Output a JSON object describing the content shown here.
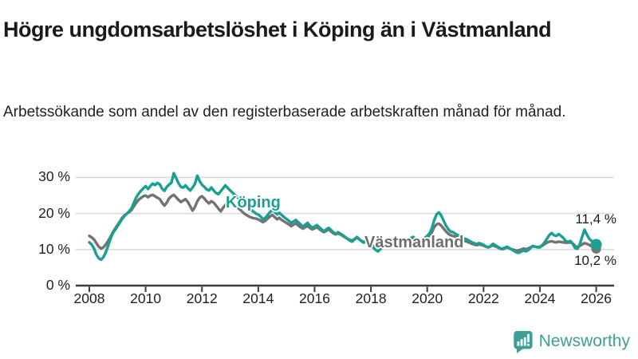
{
  "header": {
    "title": "Högre ungdomsarbetslöshet i Köping än i Västmanland",
    "subtitle": "Arbetssökande som andel av den registerbaserade arbetskraften månad för månad."
  },
  "footer": {
    "brand": "Newsworthy"
  },
  "colors": {
    "accent_teal": "#1aa091",
    "series_gray": "#737373",
    "brand_teal": "#3f9e96",
    "gridline": "#d9d9d9",
    "axis": "#3a3a3a"
  },
  "chart_data": {
    "type": "line",
    "unit": "%",
    "frequency": "monthly",
    "x_start": "2008-01",
    "x_end": "2026-01",
    "ylim": [
      0,
      33
    ],
    "grid": "horizontal",
    "legend_position": "inline-labels",
    "y_ticks": [
      {
        "value": 0,
        "label": "0 %"
      },
      {
        "value": 10,
        "label": "10 %"
      },
      {
        "value": 20,
        "label": "20 %"
      },
      {
        "value": 30,
        "label": "30 %"
      }
    ],
    "x_ticks": [
      {
        "value": 2008,
        "label": "2008"
      },
      {
        "value": 2010,
        "label": "2010"
      },
      {
        "value": 2012,
        "label": "2012"
      },
      {
        "value": 2014,
        "label": "2014"
      },
      {
        "value": 2016,
        "label": "2016"
      },
      {
        "value": 2018,
        "label": "2018"
      },
      {
        "value": 2020,
        "label": "2020"
      },
      {
        "value": 2022,
        "label": "2022"
      },
      {
        "value": 2024,
        "label": "2024"
      },
      {
        "value": 2026,
        "label": "2026"
      }
    ],
    "series": [
      {
        "name": "Köping",
        "slug": "koping",
        "color": "#1aa091",
        "end_label": "11,4 %",
        "end_value": 11.4,
        "values": [
          12.0,
          11.4,
          10.3,
          8.6,
          7.6,
          7.2,
          7.9,
          9.2,
          11.0,
          13.0,
          14.5,
          15.5,
          16.5,
          17.5,
          18.5,
          19.3,
          20.0,
          20.6,
          21.5,
          23.0,
          24.5,
          25.5,
          26.3,
          27.0,
          27.6,
          26.8,
          27.6,
          28.3,
          27.9,
          28.5,
          28.1,
          26.9,
          26.3,
          27.4,
          28.0,
          28.6,
          31.2,
          29.8,
          28.4,
          27.4,
          27.2,
          27.8,
          27.0,
          26.4,
          27.2,
          28.2,
          30.5,
          29.0,
          28.0,
          27.4,
          26.7,
          26.4,
          27.2,
          26.4,
          25.7,
          25.4,
          26.2,
          27.0,
          27.8,
          27.1,
          26.4,
          25.8,
          25.2,
          24.6,
          24.0,
          23.4,
          22.8,
          22.2,
          21.6,
          21.0,
          20.5,
          20.0,
          19.7,
          19.2,
          18.4,
          18.8,
          19.6,
          20.4,
          21.0,
          20.4,
          19.8,
          20.2,
          19.6,
          19.0,
          18.5,
          18.0,
          17.4,
          17.8,
          18.2,
          17.6,
          17.0,
          16.4,
          16.9,
          17.4,
          16.6,
          16.1,
          16.4,
          16.8,
          16.2,
          15.6,
          15.1,
          15.6,
          16.0,
          15.4,
          14.8,
          14.4,
          14.8,
          14.4,
          14.0,
          13.5,
          13.0,
          12.5,
          12.2,
          12.8,
          13.5,
          12.9,
          12.3,
          11.9,
          12.4,
          12.0,
          11.4,
          10.6,
          9.9,
          9.5,
          10.1,
          10.8,
          11.3,
          11.7,
          11.3,
          11.8,
          12.2,
          12.0,
          12.2,
          12.5,
          12.1,
          12.4,
          12.8,
          13.2,
          13.5,
          13.0,
          12.6,
          12.4,
          12.8,
          13.2,
          13.8,
          14.5,
          16.0,
          18.2,
          19.8,
          20.3,
          19.4,
          18.0,
          16.6,
          15.6,
          15.0,
          14.8,
          14.4,
          14.0,
          13.6,
          13.3,
          13.0,
          12.8,
          12.4,
          12.0,
          11.8,
          11.5,
          11.8,
          11.6,
          11.3,
          10.9,
          10.6,
          11.0,
          11.6,
          11.2,
          10.8,
          10.4,
          10.2,
          10.5,
          10.8,
          10.4,
          10.0,
          9.6,
          9.2,
          9.1,
          9.4,
          9.8,
          9.5,
          9.8,
          10.4,
          11.0,
          10.8,
          10.6,
          10.6,
          11.2,
          12.0,
          13.0,
          14.0,
          14.6,
          14.0,
          13.8,
          14.3,
          13.8,
          13.2,
          12.4,
          12.1,
          12.4,
          11.6,
          10.4,
          10.2,
          11.5,
          13.5,
          15.5,
          14.2,
          13.0,
          12.4,
          11.8,
          11.4
        ]
      },
      {
        "name": "Västmanland",
        "slug": "vastmanland",
        "color": "#737373",
        "end_label": "10,2 %",
        "end_value": 10.2,
        "values": [
          13.8,
          13.4,
          12.8,
          11.8,
          10.8,
          10.3,
          10.6,
          11.4,
          12.4,
          13.5,
          14.8,
          15.8,
          16.8,
          17.8,
          18.8,
          19.5,
          20.0,
          20.4,
          21.0,
          22.0,
          23.0,
          23.8,
          24.3,
          24.8,
          25.0,
          24.5,
          25.0,
          25.2,
          24.8,
          24.4,
          24.0,
          23.0,
          22.2,
          23.0,
          24.2,
          24.8,
          25.2,
          24.5,
          23.8,
          23.2,
          23.6,
          24.0,
          23.2,
          22.0,
          20.8,
          21.8,
          23.4,
          24.4,
          24.8,
          24.2,
          23.4,
          22.8,
          23.4,
          23.0,
          22.2,
          21.4,
          20.6,
          21.6,
          22.4,
          23.0,
          23.4,
          23.0,
          22.4,
          21.8,
          21.2,
          20.6,
          20.0,
          19.6,
          19.2,
          18.9,
          18.7,
          18.6,
          18.4,
          18.0,
          17.6,
          18.0,
          18.6,
          19.2,
          19.6,
          19.0,
          18.4,
          18.8,
          18.2,
          17.8,
          17.4,
          17.0,
          16.5,
          16.9,
          17.3,
          16.7,
          16.2,
          15.8,
          16.2,
          16.6,
          16.0,
          15.6,
          15.9,
          16.2,
          15.7,
          15.2,
          14.8,
          15.2,
          15.6,
          15.0,
          14.5,
          14.2,
          14.5,
          14.2,
          13.8,
          13.4,
          13.0,
          12.7,
          12.5,
          12.9,
          13.3,
          12.8,
          12.4,
          12.1,
          12.5,
          12.2,
          11.8,
          11.4,
          11.0,
          10.8,
          11.1,
          11.5,
          11.9,
          12.2,
          11.9,
          12.2,
          12.5,
          12.3,
          12.1,
          12.4,
          12.0,
          12.3,
          12.6,
          12.9,
          13.2,
          12.8,
          12.4,
          12.3,
          12.6,
          13.0,
          13.4,
          13.9,
          14.8,
          16.2,
          17.0,
          17.2,
          16.6,
          15.8,
          15.0,
          14.4,
          14.0,
          13.8,
          13.6,
          13.3,
          13.0,
          12.7,
          12.4,
          12.2,
          11.9,
          11.6,
          11.4,
          11.2,
          11.4,
          11.3,
          11.1,
          10.8,
          10.6,
          10.9,
          11.2,
          10.9,
          10.6,
          10.3,
          10.1,
          10.3,
          10.6,
          10.3,
          10.1,
          9.9,
          9.7,
          9.8,
          10.0,
          10.3,
          10.1,
          10.3,
          10.6,
          10.9,
          10.8,
          10.7,
          10.8,
          11.1,
          11.5,
          11.9,
          12.2,
          12.3,
          12.1,
          12.0,
          12.2,
          12.1,
          12.0,
          11.9,
          11.9,
          12.0,
          11.7,
          11.0,
          10.6,
          11.0,
          11.4,
          11.8,
          11.6,
          11.3,
          10.9,
          10.5,
          10.2
        ]
      }
    ]
  }
}
